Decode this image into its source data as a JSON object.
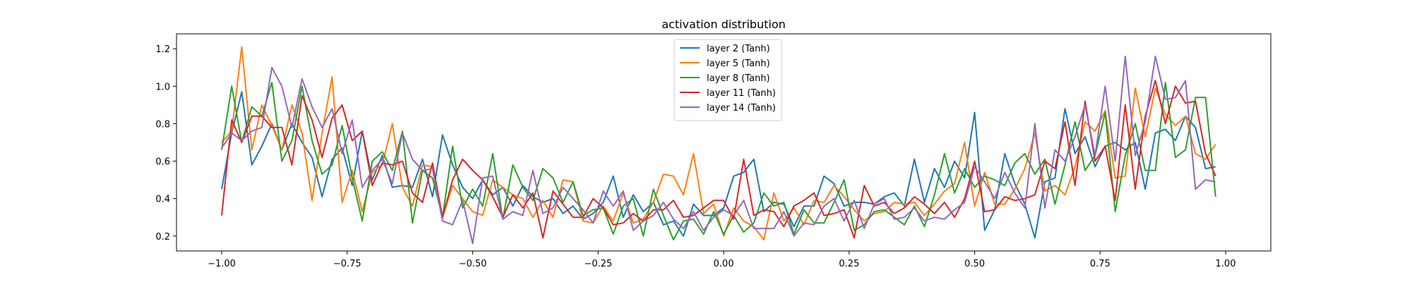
{
  "chart_data": {
    "type": "line",
    "title": "activation distribution",
    "xlabel": "",
    "ylabel": "",
    "xlim": [
      -1.09,
      1.09
    ],
    "ylim": [
      0.12,
      1.28
    ],
    "xticks": [
      -1.0,
      -0.75,
      -0.5,
      -0.25,
      0.0,
      0.25,
      0.5,
      0.75,
      1.0
    ],
    "xtick_labels": [
      "−1.00",
      "−0.75",
      "−0.50",
      "−0.25",
      "0.00",
      "0.25",
      "0.50",
      "0.75",
      "1.00"
    ],
    "yticks": [
      0.2,
      0.4,
      0.6,
      0.8,
      1.0,
      1.2
    ],
    "ytick_labels": [
      "0.2",
      "0.4",
      "0.6",
      "0.8",
      "1.0",
      "1.2"
    ],
    "grid": false,
    "legend_position": "top-center",
    "x": [
      -1.0,
      -0.98,
      -0.96,
      -0.94,
      -0.92,
      -0.9,
      -0.88,
      -0.86,
      -0.84,
      -0.82,
      -0.8,
      -0.78,
      -0.76,
      -0.74,
      -0.72,
      -0.7,
      -0.68,
      -0.66,
      -0.64,
      -0.62,
      -0.6,
      -0.58,
      -0.56,
      -0.54,
      -0.52,
      -0.5,
      -0.48,
      -0.46,
      -0.44,
      -0.42,
      -0.4,
      -0.38,
      -0.36,
      -0.34,
      -0.32,
      -0.3,
      -0.28,
      -0.26,
      -0.24,
      -0.22,
      -0.2,
      -0.18,
      -0.16,
      -0.14,
      -0.12,
      -0.1,
      -0.08,
      -0.06,
      -0.04,
      -0.02,
      0.0,
      0.02,
      0.04,
      0.06,
      0.08,
      0.1,
      0.12,
      0.14,
      0.16,
      0.18,
      0.2,
      0.22,
      0.24,
      0.26,
      0.28,
      0.3,
      0.32,
      0.34,
      0.36,
      0.38,
      0.4,
      0.42,
      0.44,
      0.46,
      0.48,
      0.5,
      0.52,
      0.54,
      0.56,
      0.58,
      0.6,
      0.62,
      0.64,
      0.66,
      0.68,
      0.7,
      0.72,
      0.74,
      0.76,
      0.78,
      0.8,
      0.82,
      0.84,
      0.86,
      0.88,
      0.9,
      0.92,
      0.94,
      0.96,
      0.98
    ],
    "series": [
      {
        "name": "layer 2 (Tanh)",
        "color": "#1f77b4",
        "values": [
          0.45,
          0.75,
          0.97,
          0.58,
          0.68,
          0.8,
          0.66,
          0.8,
          0.7,
          0.62,
          0.41,
          0.61,
          0.67,
          0.47,
          0.76,
          0.5,
          0.63,
          0.46,
          0.47,
          0.46,
          0.61,
          0.41,
          0.74,
          0.58,
          0.46,
          0.4,
          0.5,
          0.42,
          0.46,
          0.36,
          0.47,
          0.41,
          0.38,
          0.4,
          0.32,
          0.36,
          0.29,
          0.32,
          0.38,
          0.52,
          0.3,
          0.42,
          0.33,
          0.38,
          0.26,
          0.28,
          0.2,
          0.37,
          0.31,
          0.31,
          0.35,
          0.52,
          0.54,
          0.61,
          0.33,
          0.38,
          0.37,
          0.25,
          0.36,
          0.36,
          0.52,
          0.48,
          0.36,
          0.38,
          0.38,
          0.37,
          0.41,
          0.43,
          0.36,
          0.61,
          0.38,
          0.56,
          0.46,
          0.6,
          0.51,
          0.86,
          0.23,
          0.34,
          0.64,
          0.48,
          0.37,
          0.19,
          0.49,
          0.51,
          0.88,
          0.64,
          0.73,
          0.57,
          0.68,
          0.7,
          0.66,
          0.7,
          0.45,
          0.75,
          0.77,
          0.71,
          0.84,
          0.78,
          0.56,
          0.57
        ]
      },
      {
        "name": "layer 5 (Tanh)",
        "color": "#ff7f0e",
        "values": [
          0.7,
          0.76,
          1.21,
          0.66,
          0.9,
          0.79,
          0.66,
          0.9,
          0.75,
          0.39,
          0.75,
          1.05,
          0.38,
          0.55,
          0.33,
          0.54,
          0.58,
          0.8,
          0.46,
          0.36,
          0.58,
          0.57,
          0.3,
          0.47,
          0.4,
          0.33,
          0.31,
          0.5,
          0.46,
          0.42,
          0.4,
          0.3,
          0.39,
          0.3,
          0.5,
          0.49,
          0.28,
          0.27,
          0.36,
          0.28,
          0.43,
          0.27,
          0.29,
          0.38,
          0.53,
          0.52,
          0.42,
          0.64,
          0.32,
          0.37,
          0.2,
          0.35,
          0.28,
          0.25,
          0.18,
          0.43,
          0.28,
          0.35,
          0.26,
          0.39,
          0.38,
          0.47,
          0.41,
          0.34,
          0.28,
          0.32,
          0.33,
          0.38,
          0.37,
          0.38,
          0.31,
          0.37,
          0.44,
          0.48,
          0.7,
          0.36,
          0.54,
          0.37,
          0.37,
          0.45,
          0.56,
          0.75,
          0.44,
          0.47,
          0.42,
          0.57,
          0.81,
          0.76,
          0.87,
          0.51,
          0.52,
          0.99,
          0.73,
          0.99,
          0.85,
          0.79,
          0.84,
          0.64,
          0.61,
          0.69
        ]
      },
      {
        "name": "layer 8 (Tanh)",
        "color": "#2ca02c",
        "values": [
          0.66,
          1.0,
          0.7,
          0.89,
          0.84,
          1.02,
          0.6,
          0.71,
          1.0,
          0.71,
          0.53,
          0.58,
          0.79,
          0.51,
          0.28,
          0.6,
          0.65,
          0.55,
          0.76,
          0.27,
          0.55,
          0.51,
          0.3,
          0.68,
          0.35,
          0.45,
          0.36,
          0.64,
          0.29,
          0.58,
          0.46,
          0.39,
          0.56,
          0.51,
          0.38,
          0.49,
          0.31,
          0.34,
          0.35,
          0.21,
          0.36,
          0.4,
          0.2,
          0.45,
          0.31,
          0.18,
          0.28,
          0.29,
          0.21,
          0.33,
          0.21,
          0.31,
          0.22,
          0.27,
          0.43,
          0.36,
          0.38,
          0.21,
          0.34,
          0.27,
          0.27,
          0.38,
          0.5,
          0.23,
          0.26,
          0.33,
          0.34,
          0.3,
          0.26,
          0.36,
          0.25,
          0.42,
          0.64,
          0.43,
          0.56,
          0.46,
          0.52,
          0.5,
          0.47,
          0.59,
          0.64,
          0.53,
          0.61,
          0.37,
          0.58,
          0.81,
          0.55,
          0.63,
          0.86,
          0.33,
          0.63,
          0.8,
          0.55,
          0.55,
          1.02,
          0.62,
          0.66,
          0.94,
          0.94,
          0.41
        ]
      },
      {
        "name": "layer 11 (Tanh)",
        "color": "#d62728",
        "values": [
          0.31,
          0.82,
          0.7,
          0.84,
          0.84,
          0.78,
          0.78,
          0.58,
          0.95,
          0.82,
          0.62,
          0.83,
          0.9,
          0.71,
          0.76,
          0.47,
          0.59,
          0.58,
          0.6,
          0.43,
          0.38,
          0.59,
          0.3,
          0.5,
          0.61,
          0.55,
          0.5,
          0.41,
          0.3,
          0.42,
          0.35,
          0.43,
          0.19,
          0.44,
          0.37,
          0.3,
          0.3,
          0.4,
          0.35,
          0.26,
          0.27,
          0.32,
          0.28,
          0.34,
          0.34,
          0.39,
          0.3,
          0.31,
          0.35,
          0.39,
          0.39,
          0.29,
          0.61,
          0.31,
          0.34,
          0.33,
          0.25,
          0.36,
          0.39,
          0.43,
          0.31,
          0.32,
          0.34,
          0.19,
          0.47,
          0.36,
          0.38,
          0.32,
          0.35,
          0.41,
          0.37,
          0.32,
          0.38,
          0.3,
          0.4,
          0.6,
          0.33,
          0.34,
          0.41,
          0.39,
          0.4,
          0.42,
          0.6,
          0.56,
          0.81,
          0.47,
          0.92,
          0.6,
          0.68,
          0.39,
          0.9,
          0.45,
          0.84,
          1.03,
          0.8,
          1.0,
          0.91,
          0.92,
          0.64,
          0.52
        ]
      },
      {
        "name": "layer 14 (Tanh)",
        "color": "#9467bd",
        "values": [
          0.67,
          0.75,
          0.71,
          0.76,
          0.78,
          1.1,
          1.0,
          0.78,
          1.04,
          0.89,
          0.78,
          0.88,
          0.64,
          0.82,
          0.46,
          0.55,
          0.61,
          0.48,
          0.75,
          0.61,
          0.55,
          0.56,
          0.28,
          0.26,
          0.39,
          0.16,
          0.51,
          0.52,
          0.29,
          0.33,
          0.31,
          0.55,
          0.32,
          0.35,
          0.46,
          0.4,
          0.34,
          0.27,
          0.44,
          0.36,
          0.44,
          0.23,
          0.28,
          0.31,
          0.38,
          0.29,
          0.24,
          0.33,
          0.23,
          0.3,
          0.34,
          0.31,
          0.39,
          0.24,
          0.24,
          0.24,
          0.33,
          0.2,
          0.27,
          0.26,
          0.36,
          0.4,
          0.28,
          0.39,
          0.24,
          0.37,
          0.4,
          0.29,
          0.3,
          0.35,
          0.28,
          0.3,
          0.29,
          0.34,
          0.38,
          0.57,
          0.49,
          0.4,
          0.54,
          0.43,
          0.35,
          0.8,
          0.35,
          0.66,
          0.6,
          0.73,
          0.9,
          0.63,
          1.0,
          0.6,
          1.16,
          0.63,
          0.81,
          1.16,
          0.93,
          0.94,
          1.03,
          0.45,
          0.5,
          0.49
        ]
      }
    ]
  }
}
